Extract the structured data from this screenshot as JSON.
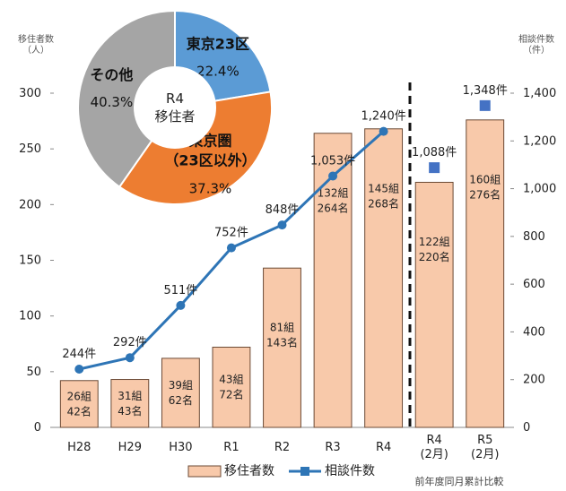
{
  "chart_data": [
    {
      "type": "bar",
      "categories": [
        "H28",
        "H29",
        "H30",
        "R1",
        "R2",
        "R3",
        "R4",
        "R4\n(2月)",
        "R5\n(2月)"
      ],
      "series": [
        {
          "name": "移住者数",
          "type": "bar",
          "color": "#f8c9aa",
          "values": [
            42,
            43,
            62,
            72,
            143,
            264,
            268,
            220,
            276
          ],
          "value_labels": [
            "26組\n42名",
            "31組\n43名",
            "39組\n62名",
            "43組\n72名",
            "81組\n143名",
            "132組\n264名",
            "145組\n268名",
            "122組\n220名",
            "160組\n276名"
          ]
        },
        {
          "name": "相談件数",
          "type": "line",
          "color": "#2e75b6",
          "axis": "y2",
          "values": [
            244,
            292,
            511,
            752,
            848,
            1053,
            1240,
            null,
            null
          ],
          "value_labels": [
            "244件",
            "292件",
            "511件",
            "752件",
            "848件",
            "1,053件",
            "1,240件",
            null,
            null
          ]
        },
        {
          "type": "scatter",
          "marker": "square",
          "color": "#4472c4",
          "axis": "y2",
          "values": [
            null,
            null,
            null,
            null,
            null,
            null,
            null,
            1088,
            1348
          ],
          "value_labels": [
            null,
            null,
            null,
            null,
            null,
            null,
            null,
            "1,088件",
            "1,348件"
          ]
        }
      ],
      "ylim": [
        0,
        300
      ],
      "yticks": [
        0,
        50,
        100,
        150,
        200,
        250,
        300
      ],
      "y2lim": [
        0,
        1400
      ],
      "y2ticks": [
        0,
        200,
        400,
        600,
        800,
        {
          "value": 1000,
          "label": "1,000"
        },
        {
          "value": 1200,
          "label": "1,200"
        },
        {
          "value": 1400,
          "label": "1,400"
        }
      ],
      "ylabel": "移住者数\n（人）",
      "y2label": "相談件数\n（件）",
      "annotation": "前年度同月累計比較",
      "legend": "bottom"
    },
    {
      "type": "pie",
      "center_label": "R4\n移住者",
      "categories": [
        "東京23区",
        "東京圏\n（23区以外）",
        "その他"
      ],
      "values": [
        22.4,
        37.3,
        40.3
      ],
      "value_labels": [
        "22.4%",
        "37.3%",
        "40.3%"
      ],
      "colors": [
        "#5b9bd5",
        "#ed7d31",
        "#a5a5a5"
      ]
    }
  ]
}
